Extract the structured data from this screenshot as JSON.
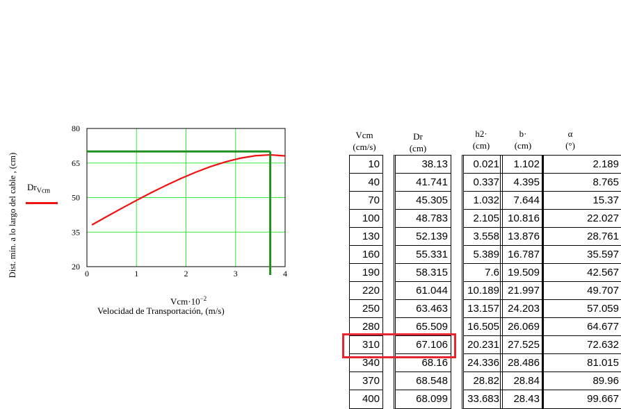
{
  "chart": {
    "ylabel": "Dist. mín. a lo largo del cable , (cm)",
    "legend": {
      "main": "Dr",
      "sub": "Vcm"
    },
    "xlabel_line1_main": "Vcm·10",
    "xlabel_line1_exp": "−2",
    "xlabel_line2": "Velocidad de Transportación, (m/s)",
    "colors": {
      "curve": "#f21010",
      "marker": "#1e8f1e",
      "grid": "#33ee33"
    }
  },
  "chart_data": {
    "type": "line",
    "xlabel": "Vcm·10−2",
    "ylabel": "Dist. mín. a lo largo del cable , (cm)",
    "xlim": [
      0,
      4
    ],
    "ylim": [
      20,
      80
    ],
    "xticks": [
      "0",
      "1",
      "2",
      "3",
      "4"
    ],
    "yticks": [
      "20",
      "35",
      "50",
      "65",
      "80"
    ],
    "grid": true,
    "series": [
      {
        "name": "DrVcm",
        "x": [
          0.1,
          0.4,
          0.7,
          1.0,
          1.3,
          1.6,
          1.9,
          2.2,
          2.5,
          2.8,
          3.1,
          3.4,
          3.7,
          4.0
        ],
        "y": [
          38.13,
          41.741,
          45.305,
          48.783,
          52.139,
          55.331,
          58.315,
          61.044,
          63.463,
          65.509,
          67.106,
          68.16,
          68.548,
          68.099
        ]
      }
    ],
    "marker": {
      "x": 3.7,
      "y": 70
    }
  },
  "table": {
    "headers": [
      {
        "l1": "Vcm",
        "l2": "(cm/s)"
      },
      {
        "l1": "Dr",
        "l2": "(cm)"
      },
      {
        "l1": "h2·",
        "l2": "(cm)"
      },
      {
        "l1": "b·",
        "l2": "(cm)"
      },
      {
        "l1": "α",
        "l2": "(°)"
      }
    ],
    "columns": [
      [
        "10",
        "40",
        "70",
        "100",
        "130",
        "160",
        "190",
        "220",
        "250",
        "280",
        "310",
        "340",
        "370",
        "400"
      ],
      [
        "38.13",
        "41.741",
        "45.305",
        "48.783",
        "52.139",
        "55.331",
        "58.315",
        "61.044",
        "63.463",
        "65.509",
        "67.106",
        "68.16",
        "68.548",
        "68.099"
      ],
      [
        "0.021",
        "0.337",
        "1.032",
        "2.105",
        "3.558",
        "5.389",
        "7.6",
        "10.189",
        "13.157",
        "16.505",
        "20.231",
        "24.336",
        "28.82",
        "33.683"
      ],
      [
        "1.102",
        "4.395",
        "7.644",
        "10.816",
        "13.876",
        "16.787",
        "19.509",
        "21.997",
        "24.203",
        "26.069",
        "27.525",
        "28.486",
        "28.84",
        "28.43"
      ],
      [
        "2.189",
        "8.765",
        "15.37",
        "22.027",
        "28.761",
        "35.597",
        "42.567",
        "49.707",
        "57.059",
        "64.677",
        "72.632",
        "81.015",
        "89.96",
        "99.667"
      ]
    ],
    "highlight_row": 12,
    "highlight_color": "#e8242c"
  }
}
